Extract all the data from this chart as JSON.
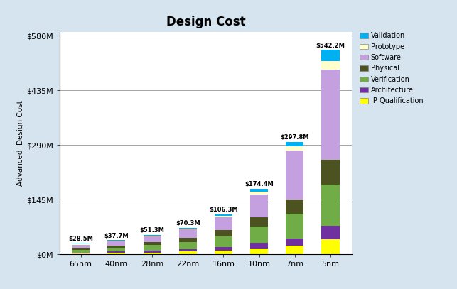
{
  "categories": [
    "65nm",
    "40nm",
    "28nm",
    "22nm",
    "16nm",
    "10nm",
    "7nm",
    "5nm"
  ],
  "totals": [
    "$28.5M",
    "$37.7M",
    "$51.3M",
    "$70.3M",
    "$106.3M",
    "$174.4M",
    "$297.8M",
    "$542.2M"
  ],
  "total_values": [
    28.5,
    37.7,
    51.3,
    70.3,
    106.3,
    174.4,
    297.8,
    542.2
  ],
  "layer_order": [
    "IP Qualification",
    "Architecture",
    "Verification",
    "Physical",
    "Software",
    "Prototype",
    "Validation"
  ],
  "layer_colors": {
    "IP Qualification": "#FFFF00",
    "Architecture": "#7030A0",
    "Verification": "#70AD47",
    "Physical": "#4D5320",
    "Software": "#C5A0E0",
    "Prototype": "#FFFFCC",
    "Validation": "#00B0F0"
  },
  "layer_values": {
    "IP Qualification": [
      2.5,
      3.5,
      5.0,
      7.0,
      10.0,
      15.0,
      22.0,
      40.0
    ],
    "Architecture": [
      2.5,
      3.5,
      5.0,
      7.0,
      10.0,
      15.0,
      20.0,
      35.0
    ],
    "Verification": [
      7.5,
      10.0,
      14.0,
      19.0,
      28.0,
      43.0,
      65.0,
      110.0
    ],
    "Physical": [
      4.0,
      5.5,
      7.5,
      10.5,
      16.0,
      25.0,
      38.0,
      65.0
    ],
    "Software": [
      9.0,
      12.2,
      16.5,
      22.5,
      35.0,
      60.0,
      130.0,
      240.0
    ],
    "Prototype": [
      1.0,
      1.5,
      1.8,
      2.3,
      3.3,
      7.4,
      10.8,
      22.0
    ],
    "Validation": [
      2.0,
      1.5,
      1.5,
      2.0,
      4.0,
      9.0,
      12.0,
      30.2
    ]
  },
  "title": "Design Cost",
  "ylabel": "Advanced  Design Cost",
  "yticks": [
    0,
    145,
    290,
    435,
    580
  ],
  "ytick_labels": [
    "$0M",
    "$145M",
    "$290M",
    "$435M",
    "$580M"
  ],
  "ylim": [
    0,
    590
  ],
  "bg_color": "#D6E4F0",
  "plot_bg": "#FFFFFF",
  "bar_width": 0.5,
  "legend_labels": [
    "Validation",
    "Prototype",
    "Software",
    "Physical",
    "Verification",
    "Architecture",
    "IP Qualification"
  ],
  "legend_colors": [
    "#00B0F0",
    "#FFFFCC",
    "#C5A0E0",
    "#4D5320",
    "#70AD47",
    "#7030A0",
    "#FFFF00"
  ]
}
